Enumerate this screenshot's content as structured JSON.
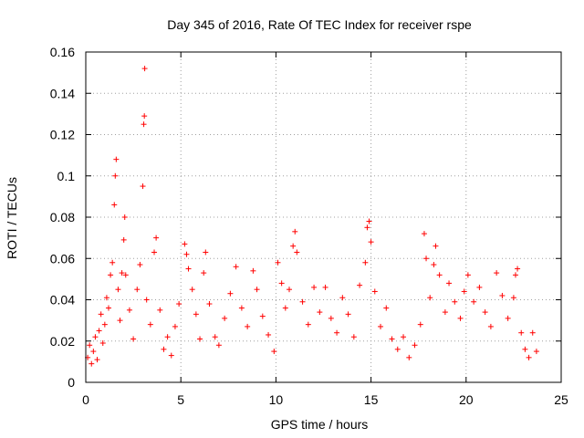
{
  "chart_data": {
    "type": "scatter",
    "title": "Day 345 of 2016, Rate Of TEC Index for receiver rspe",
    "xlabel": "GPS time / hours",
    "ylabel": "ROTI / TECUs",
    "xlim": [
      0,
      25
    ],
    "ylim": [
      0,
      0.16
    ],
    "xticks": [
      0,
      5,
      10,
      15,
      20,
      25
    ],
    "yticks": [
      0,
      0.02,
      0.04,
      0.06,
      0.08,
      0.1,
      0.12,
      0.14,
      0.16
    ],
    "xtick_labels": [
      "0",
      "5",
      "10",
      "15",
      "20",
      "25"
    ],
    "ytick_labels": [
      "0",
      "0.02",
      "0.04",
      "0.06",
      "0.08",
      "0.1",
      "0.12",
      "0.14",
      "0.16"
    ],
    "grid": true,
    "marker": "+",
    "color": "#ff0000",
    "series": [
      {
        "name": "rspe",
        "points": [
          [
            0.1,
            0.012
          ],
          [
            0.2,
            0.018
          ],
          [
            0.3,
            0.009
          ],
          [
            0.4,
            0.015
          ],
          [
            0.5,
            0.022
          ],
          [
            0.6,
            0.011
          ],
          [
            0.7,
            0.025
          ],
          [
            0.8,
            0.033
          ],
          [
            0.9,
            0.019
          ],
          [
            1.0,
            0.028
          ],
          [
            1.1,
            0.041
          ],
          [
            1.2,
            0.036
          ],
          [
            1.3,
            0.052
          ],
          [
            1.4,
            0.058
          ],
          [
            1.5,
            0.086
          ],
          [
            1.55,
            0.1
          ],
          [
            1.6,
            0.108
          ],
          [
            1.7,
            0.045
          ],
          [
            1.8,
            0.03
          ],
          [
            1.9,
            0.053
          ],
          [
            2.0,
            0.069
          ],
          [
            2.05,
            0.08
          ],
          [
            2.1,
            0.052
          ],
          [
            2.3,
            0.035
          ],
          [
            2.5,
            0.021
          ],
          [
            2.7,
            0.045
          ],
          [
            2.85,
            0.057
          ],
          [
            3.0,
            0.095
          ],
          [
            3.05,
            0.125
          ],
          [
            3.08,
            0.129
          ],
          [
            3.1,
            0.152
          ],
          [
            3.2,
            0.04
          ],
          [
            3.4,
            0.028
          ],
          [
            3.6,
            0.063
          ],
          [
            3.7,
            0.07
          ],
          [
            3.9,
            0.035
          ],
          [
            4.1,
            0.016
          ],
          [
            4.3,
            0.022
          ],
          [
            4.5,
            0.013
          ],
          [
            4.7,
            0.027
          ],
          [
            4.9,
            0.038
          ],
          [
            5.2,
            0.067
          ],
          [
            5.3,
            0.062
          ],
          [
            5.4,
            0.055
          ],
          [
            5.6,
            0.045
          ],
          [
            5.8,
            0.033
          ],
          [
            6.0,
            0.021
          ],
          [
            6.2,
            0.053
          ],
          [
            6.3,
            0.063
          ],
          [
            6.5,
            0.038
          ],
          [
            6.8,
            0.022
          ],
          [
            7.0,
            0.018
          ],
          [
            7.3,
            0.031
          ],
          [
            7.6,
            0.043
          ],
          [
            7.9,
            0.056
          ],
          [
            8.2,
            0.036
          ],
          [
            8.5,
            0.027
          ],
          [
            8.8,
            0.054
          ],
          [
            9.0,
            0.045
          ],
          [
            9.3,
            0.032
          ],
          [
            9.6,
            0.023
          ],
          [
            9.9,
            0.015
          ],
          [
            10.1,
            0.058
          ],
          [
            10.3,
            0.048
          ],
          [
            10.5,
            0.036
          ],
          [
            10.7,
            0.045
          ],
          [
            10.9,
            0.066
          ],
          [
            11.0,
            0.073
          ],
          [
            11.1,
            0.063
          ],
          [
            11.4,
            0.039
          ],
          [
            11.7,
            0.028
          ],
          [
            12.0,
            0.046
          ],
          [
            12.3,
            0.034
          ],
          [
            12.6,
            0.046
          ],
          [
            12.9,
            0.031
          ],
          [
            13.2,
            0.024
          ],
          [
            13.5,
            0.041
          ],
          [
            13.8,
            0.033
          ],
          [
            14.1,
            0.022
          ],
          [
            14.4,
            0.047
          ],
          [
            14.7,
            0.058
          ],
          [
            14.8,
            0.075
          ],
          [
            14.9,
            0.078
          ],
          [
            15.0,
            0.068
          ],
          [
            15.2,
            0.044
          ],
          [
            15.5,
            0.027
          ],
          [
            15.8,
            0.036
          ],
          [
            16.1,
            0.021
          ],
          [
            16.4,
            0.016
          ],
          [
            16.7,
            0.022
          ],
          [
            17.0,
            0.012
          ],
          [
            17.3,
            0.018
          ],
          [
            17.6,
            0.028
          ],
          [
            17.8,
            0.072
          ],
          [
            17.9,
            0.06
          ],
          [
            18.1,
            0.041
          ],
          [
            18.3,
            0.057
          ],
          [
            18.4,
            0.066
          ],
          [
            18.6,
            0.052
          ],
          [
            18.9,
            0.034
          ],
          [
            19.1,
            0.048
          ],
          [
            19.4,
            0.039
          ],
          [
            19.7,
            0.031
          ],
          [
            19.9,
            0.044
          ],
          [
            20.1,
            0.052
          ],
          [
            20.4,
            0.039
          ],
          [
            20.7,
            0.046
          ],
          [
            21.0,
            0.034
          ],
          [
            21.3,
            0.027
          ],
          [
            21.6,
            0.053
          ],
          [
            21.9,
            0.042
          ],
          [
            22.2,
            0.031
          ],
          [
            22.5,
            0.041
          ],
          [
            22.6,
            0.052
          ],
          [
            22.7,
            0.055
          ],
          [
            22.9,
            0.024
          ],
          [
            23.1,
            0.016
          ],
          [
            23.3,
            0.012
          ],
          [
            23.5,
            0.024
          ],
          [
            23.7,
            0.015
          ]
        ]
      }
    ]
  }
}
